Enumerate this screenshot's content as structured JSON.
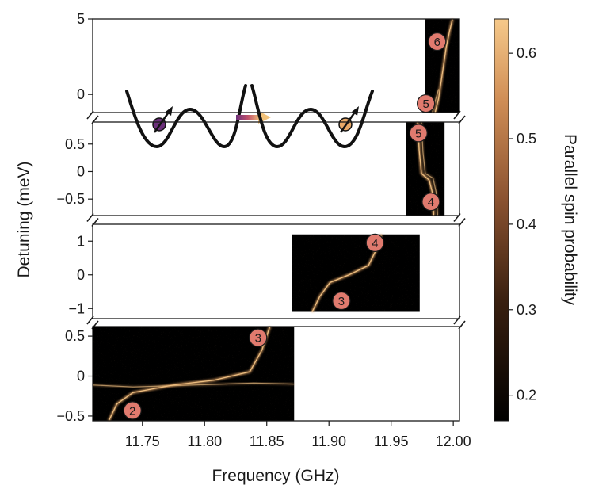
{
  "chart_data": {
    "type": "heatmap",
    "xlabel": "Frequency (GHz)",
    "ylabel": "Detuning (meV)",
    "colorbar": {
      "label": "Parallel spin probability",
      "range": [
        0.17,
        0.64
      ],
      "ticks": [
        "0.2",
        "0.3",
        "0.4",
        "0.5",
        "0.6"
      ],
      "tick_values": [
        0.2,
        0.3,
        0.4,
        0.5,
        0.6
      ],
      "colormap": "copper",
      "colors": [
        "#000000",
        "#3a2010",
        "#8a5230",
        "#d08e56",
        "#f6c98a"
      ]
    },
    "x_axis": {
      "range": [
        11.71,
        12.005
      ],
      "ticks": [
        "11.75",
        "11.80",
        "11.85",
        "11.90",
        "11.95",
        "12.00"
      ],
      "tick_values": [
        11.75,
        11.8,
        11.85,
        11.9,
        11.95,
        12.0
      ]
    },
    "panels": [
      {
        "name": "top",
        "y_range": [
          -1.2,
          5.0
        ],
        "y_ticks": [
          "5",
          "0"
        ],
        "y_tick_values": [
          5,
          0
        ],
        "data_x_range": [
          11.977,
          12.005
        ],
        "data_y_range": [
          -1.2,
          5.0
        ],
        "transitions": [
          {
            "label": "6",
            "x": 11.987,
            "y": 3.5
          },
          {
            "label": "5",
            "x": 11.978,
            "y": -0.6
          }
        ]
      },
      {
        "name": "upper-middle",
        "y_range": [
          -0.8,
          0.9
        ],
        "y_ticks": [
          "0.5",
          "0",
          "−0.5"
        ],
        "y_tick_values": [
          0.5,
          0,
          -0.5
        ],
        "data_x_range": [
          11.962,
          11.993
        ],
        "data_y_range": [
          -0.8,
          0.9
        ],
        "transitions": [
          {
            "label": "5",
            "x": 11.972,
            "y": 0.7
          },
          {
            "label": "4",
            "x": 11.982,
            "y": -0.55
          }
        ]
      },
      {
        "name": "lower-middle",
        "y_range": [
          -1.3,
          1.5
        ],
        "y_ticks": [
          "1",
          "0",
          "−1"
        ],
        "y_tick_values": [
          1,
          0,
          -1
        ],
        "data_x_range": [
          11.87,
          11.973
        ],
        "data_y_range": [
          -1.1,
          1.2
        ],
        "transitions": [
          {
            "label": "4",
            "x": 11.937,
            "y": 0.95
          },
          {
            "label": "3",
            "x": 11.91,
            "y": -0.77
          }
        ]
      },
      {
        "name": "bottom",
        "y_range": [
          -0.56,
          0.62
        ],
        "y_ticks": [
          "0.5",
          "0",
          "−0.5"
        ],
        "y_tick_values": [
          0.5,
          0,
          -0.5
        ],
        "data_x_range": [
          11.71,
          11.872
        ],
        "data_y_range": [
          -0.56,
          0.62
        ],
        "transitions": [
          {
            "label": "3",
            "x": 11.843,
            "y": 0.48
          },
          {
            "label": "2",
            "x": 11.742,
            "y": -0.43
          }
        ]
      }
    ],
    "inset": {
      "description": "double-well potentials with spin arrow, before and after transfer",
      "particle_colors": [
        "#6b2f7a",
        "#e8a867"
      ],
      "arrow_gradient": [
        "#6b2f7a",
        "#f2c27a"
      ]
    }
  }
}
